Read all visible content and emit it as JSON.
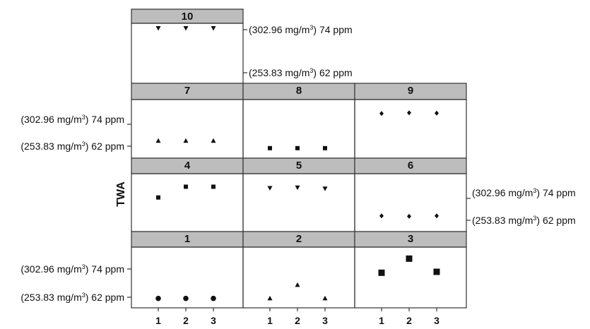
{
  "chart_data": {
    "type": "scatter",
    "ylabel": "TWA",
    "x_ticks": [
      "1",
      "2",
      "3"
    ],
    "y_reference_labels": [
      {
        "text": "(253.83 mg/m",
        "sup": "3",
        "tail": ") 62 ppm",
        "value": 62
      },
      {
        "text": "(302.96 mg/m",
        "sup": "3",
        "tail": ") 74 ppm",
        "value": 74
      }
    ],
    "panels": [
      {
        "id": "10",
        "label": "10",
        "marker": "triangle-down",
        "points": [
          {
            "x": 1,
            "y": 74.4
          },
          {
            "x": 2,
            "y": 74.4
          },
          {
            "x": 3,
            "y": 74.4
          }
        ]
      },
      {
        "id": "7",
        "label": "7",
        "marker": "triangle-up",
        "points": [
          {
            "x": 1,
            "y": 65.0
          },
          {
            "x": 2,
            "y": 65.0
          },
          {
            "x": 3,
            "y": 65.0
          }
        ]
      },
      {
        "id": "8",
        "label": "8",
        "marker": "square",
        "points": [
          {
            "x": 1,
            "y": 60.9
          },
          {
            "x": 2,
            "y": 60.9
          },
          {
            "x": 3,
            "y": 60.9
          }
        ]
      },
      {
        "id": "9",
        "label": "9",
        "marker": "diamond",
        "points": [
          {
            "x": 1,
            "y": 79.9
          },
          {
            "x": 2,
            "y": 80.3
          },
          {
            "x": 3,
            "y": 80.1
          }
        ]
      },
      {
        "id": "4",
        "label": "4",
        "marker": "square",
        "points": [
          {
            "x": 1,
            "y": 74.5
          },
          {
            "x": 2,
            "y": 80.4
          },
          {
            "x": 3,
            "y": 80.4
          }
        ]
      },
      {
        "id": "5",
        "label": "5",
        "marker": "triangle-down",
        "points": [
          {
            "x": 1,
            "y": 79.6
          },
          {
            "x": 2,
            "y": 79.9
          },
          {
            "x": 3,
            "y": 79.3
          }
        ]
      },
      {
        "id": "6",
        "label": "6",
        "marker": "diamond",
        "points": [
          {
            "x": 1,
            "y": 64.4
          },
          {
            "x": 2,
            "y": 64.2
          },
          {
            "x": 3,
            "y": 64.4
          }
        ]
      },
      {
        "id": "1",
        "label": "1",
        "marker": "circle",
        "points": [
          {
            "x": 1,
            "y": 61.5
          },
          {
            "x": 2,
            "y": 61.5
          },
          {
            "x": 3,
            "y": 61.5
          }
        ]
      },
      {
        "id": "2",
        "label": "2",
        "marker": "triangle-up",
        "points": [
          {
            "x": 1,
            "y": 61.6
          },
          {
            "x": 2,
            "y": 67.3
          },
          {
            "x": 3,
            "y": 61.6
          }
        ]
      },
      {
        "id": "3",
        "label": "3",
        "marker": "big-square",
        "points": [
          {
            "x": 1,
            "y": 72.4
          },
          {
            "x": 2,
            "y": 78.4
          },
          {
            "x": 3,
            "y": 72.8
          }
        ]
      }
    ]
  }
}
